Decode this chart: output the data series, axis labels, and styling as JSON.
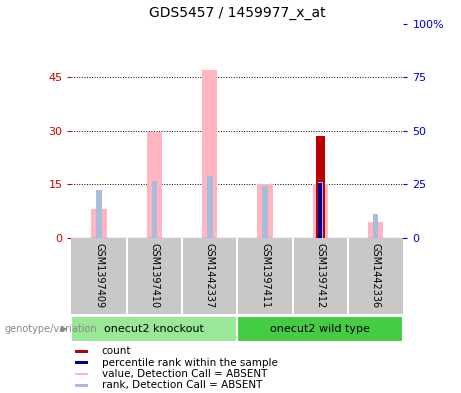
{
  "title": "GDS5457 / 1459977_x_at",
  "samples": [
    "GSM1397409",
    "GSM1397410",
    "GSM1442337",
    "GSM1397411",
    "GSM1397412",
    "GSM1442336"
  ],
  "value_absent": [
    8.0,
    29.5,
    47.0,
    15.0,
    15.0,
    4.5
  ],
  "rank_absent_pct": [
    22.5,
    26.5,
    29.0,
    24.0,
    26.0,
    11.0
  ],
  "count": [
    null,
    null,
    null,
    null,
    28.5,
    null
  ],
  "percentile": [
    null,
    null,
    null,
    null,
    25.5,
    null
  ],
  "ylim_left": [
    0,
    60
  ],
  "ylim_right": [
    0,
    100
  ],
  "yticks_left": [
    0,
    15,
    30,
    45
  ],
  "ytick_labels_left": [
    "0",
    "15",
    "30",
    "45"
  ],
  "ytick_labels_right": [
    "0",
    "25",
    "50",
    "75",
    "100%"
  ],
  "pink_color": "#FFB6C1",
  "lightblue_color": "#AABBDD",
  "red_color": "#BB0000",
  "blue_color": "#000099",
  "left_axis_color": "#CC0000",
  "right_axis_color": "#0000CC",
  "label_area_color": "#C8C8C8",
  "knockout_color": "#98E898",
  "wildtype_color": "#44CC44",
  "group_names": [
    "onecut2 knockout",
    "onecut2 wild type"
  ],
  "group_ranges": [
    [
      0,
      2
    ],
    [
      3,
      5
    ]
  ],
  "legend_items": [
    [
      "#BB0000",
      "count"
    ],
    [
      "#000099",
      "percentile rank within the sample"
    ],
    [
      "#FFB6C1",
      "value, Detection Call = ABSENT"
    ],
    [
      "#AABBDD",
      "rank, Detection Call = ABSENT"
    ]
  ]
}
